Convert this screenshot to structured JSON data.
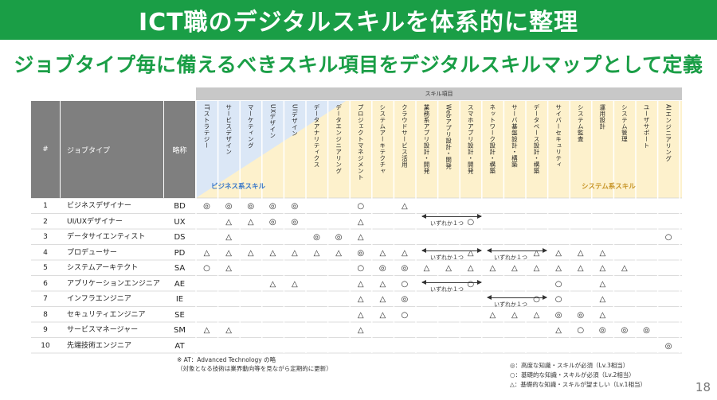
{
  "title": "ICT職のデジタルスキルを体系的に整理",
  "subtitle": "ジョブタイプ毎に備えるべきスキル項目をデジタルスキルマップとして定義",
  "table": {
    "skill_header": "スキル項目",
    "headers": {
      "num": "#",
      "job": "ジョブタイプ",
      "abbr": "略称"
    },
    "skills": [
      "ITストラテジー",
      "サービスデザイン",
      "マーケティング",
      "UXデザイン",
      "UIデザイン",
      "データアナリティクス",
      "データエンジニアリング",
      "プロジェクトマネジメント",
      "システムアーキテクチャ",
      "クラウドサービス活用",
      "業務系アプリ設計・開発",
      "Webアプリ設計・開発",
      "スマホアプリ設計・開発",
      "ネットワーク設計・構築",
      "サーバ基盤設計・構築",
      "データベース設計・構築",
      "サイバーセキュリティ",
      "システム監査",
      "運用設計",
      "システム管理",
      "ユーザサポート",
      "AIエンジニアリング"
    ],
    "group_biz": "ビジネス系スキル",
    "group_sys": "システム系スキル",
    "rows": [
      {
        "num": "1",
        "job": "ビジネスデザイナー",
        "abbr": "BD",
        "marks": [
          "◎",
          "◎",
          "◎",
          "◎",
          "◎",
          "",
          "",
          "○",
          "",
          "△",
          "",
          "",
          "",
          "",
          "",
          "",
          "",
          "",
          "",
          "",
          "",
          ""
        ]
      },
      {
        "num": "2",
        "job": "UI/UXデザイナー",
        "abbr": "UX",
        "marks": [
          "",
          "△",
          "△",
          "◎",
          "◎",
          "",
          "",
          "△",
          "",
          "",
          "",
          "",
          "○",
          "",
          "",
          "",
          "",
          "",
          "",
          "",
          "",
          ""
        ]
      },
      {
        "num": "3",
        "job": "データサイエンティスト",
        "abbr": "DS",
        "marks": [
          "",
          "△",
          "",
          "",
          "",
          "◎",
          "◎",
          "△",
          "",
          "",
          "",
          "",
          "",
          "",
          "",
          "",
          "",
          "",
          "",
          "",
          "",
          "○"
        ]
      },
      {
        "num": "4",
        "job": "プロデューサー",
        "abbr": "PD",
        "marks": [
          "△",
          "△",
          "△",
          "△",
          "△",
          "△",
          "△",
          "◎",
          "△",
          "△",
          "",
          "",
          "△",
          "",
          "",
          "△",
          "△",
          "△",
          "△",
          "",
          "",
          ""
        ]
      },
      {
        "num": "5",
        "job": "システムアーキテクト",
        "abbr": "SA",
        "marks": [
          "○",
          "△",
          "",
          "",
          "",
          "",
          "",
          "○",
          "◎",
          "◎",
          "△",
          "△",
          "△",
          "△",
          "△",
          "△",
          "△",
          "△",
          "△",
          "△",
          "",
          ""
        ]
      },
      {
        "num": "6",
        "job": "アプリケーションエンジニア",
        "abbr": "AE",
        "marks": [
          "",
          "",
          "",
          "△",
          "△",
          "",
          "",
          "△",
          "△",
          "○",
          "",
          "",
          "○",
          "",
          "",
          "",
          "○",
          "",
          "△",
          "",
          "",
          ""
        ]
      },
      {
        "num": "7",
        "job": "インフラエンジニア",
        "abbr": "IE",
        "marks": [
          "",
          "",
          "",
          "",
          "",
          "",
          "",
          "△",
          "△",
          "◎",
          "",
          "",
          "",
          "",
          "",
          "○",
          "○",
          "",
          "△",
          "",
          "",
          ""
        ]
      },
      {
        "num": "8",
        "job": "セキュリティエンジニア",
        "abbr": "SE",
        "marks": [
          "",
          "",
          "",
          "",
          "",
          "",
          "",
          "△",
          "△",
          "○",
          "",
          "",
          "",
          "△",
          "△",
          "△",
          "◎",
          "◎",
          "△",
          "",
          "",
          ""
        ]
      },
      {
        "num": "9",
        "job": "サービスマネージャー",
        "abbr": "SM",
        "marks": [
          "△",
          "△",
          "",
          "",
          "",
          "",
          "",
          "△",
          "",
          "",
          "",
          "",
          "",
          "",
          "",
          "",
          "△",
          "○",
          "◎",
          "◎",
          "◎",
          ""
        ]
      },
      {
        "num": "10",
        "job": "先端技術エンジニア",
        "abbr": "AT",
        "marks": [
          "",
          "",
          "",
          "",
          "",
          "",
          "",
          "",
          "",
          "",
          "",
          "",
          "",
          "",
          "",
          "",
          "",
          "",
          "",
          "",
          "",
          "◎"
        ]
      }
    ],
    "either_one_label": "いずれか１つ"
  },
  "note_lines": [
    "※ AT：Advanced Technology の略",
    "（対象となる技術は業界動向等を見ながら定期的に更新）"
  ],
  "legend": [
    "◎：高度な知識・スキルが必須（Lv.3相当）",
    "○：基礎的な知識・スキルが必須（Lv.2相当）",
    "△：基礎的な知識・スキルが望ましい（Lv.1相当）"
  ],
  "page_number": "18",
  "colors": {
    "brand_green": "#1a9e46",
    "header_gray": "#7f7f7f",
    "biz_blue": "#dbe7f6",
    "sys_yellow": "#fdf1cc"
  }
}
